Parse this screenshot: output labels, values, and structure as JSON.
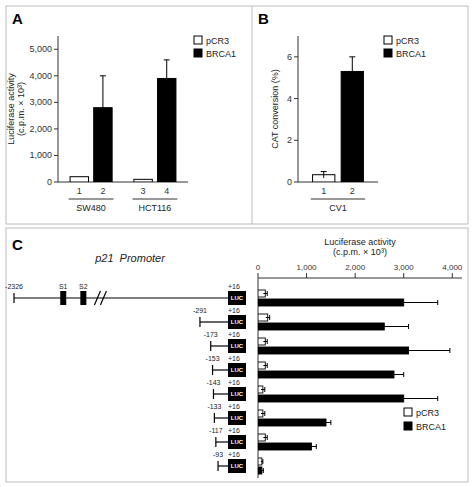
{
  "chart_data": [
    {
      "type": "bar",
      "title": "A",
      "categories": [
        "1",
        "2",
        "3",
        "4"
      ],
      "values": [
        200,
        2800,
        100,
        3900
      ],
      "errors": [
        0,
        1200,
        0,
        700
      ],
      "colors": [
        "white",
        "black",
        "white",
        "black"
      ],
      "group_labels": [
        "SW480",
        "HCT116"
      ],
      "legend_entries": [
        {
          "name": "pCR3",
          "color": "white"
        },
        {
          "name": "BRCA1",
          "color": "black"
        }
      ],
      "legend": "upper right",
      "ylabel": "Luciferase activity\n(c.p.m. × 10³)",
      "ylim": [
        0,
        5500
      ],
      "yticks": [
        0,
        {
          "value": 1000,
          "label": "1,000"
        },
        {
          "value": 2000,
          "label": "2,000"
        },
        {
          "value": 3000,
          "label": "3,000"
        },
        {
          "value": 4000,
          "label": "4,000"
        },
        {
          "value": 5000,
          "label": "5,000"
        }
      ]
    },
    {
      "type": "bar",
      "title": "B",
      "categories": [
        "1",
        "2"
      ],
      "values": [
        0.35,
        5.3
      ],
      "errors": [
        0.15,
        0.7
      ],
      "colors": [
        "white",
        "black"
      ],
      "group_labels": [
        "CV1"
      ],
      "legend_entries": [
        {
          "name": "pCR3",
          "color": "white"
        },
        {
          "name": "BRCA1",
          "color": "black"
        }
      ],
      "legend": "upper right",
      "ylabel": "CAT conversion (%)",
      "ylim": [
        0,
        7
      ],
      "yticks": [
        0,
        2,
        4,
        6
      ]
    },
    {
      "type": "bar",
      "orientation": "horizontal",
      "title": "C",
      "subtitle": "p21  Promoter",
      "xlabel": "Luciferase activity\n(c.p.m. × 10³)",
      "categories": [
        -2326,
        -291,
        -173,
        -153,
        -143,
        -133,
        -117,
        -93
      ],
      "series": [
        {
          "name": "pCR3",
          "color": "white",
          "values": [
            150,
            200,
            150,
            150,
            100,
            100,
            150,
            80
          ],
          "errors": [
            40,
            40,
            40,
            40,
            40,
            40,
            40,
            20
          ]
        },
        {
          "name": "BRCA1",
          "color": "black",
          "values": [
            3000,
            2600,
            3100,
            2800,
            3000,
            1400,
            1100,
            80
          ],
          "errors": [
            700,
            500,
            850,
            200,
            700,
            100,
            100,
            30
          ]
        }
      ],
      "legend": "lower right",
      "xlim": [
        0,
        4200
      ],
      "xticks": [
        0,
        {
          "value": 1000,
          "label": "1,000"
        },
        {
          "value": 2000,
          "label": "2,000"
        },
        {
          "value": 3000,
          "label": "3,000"
        },
        {
          "value": 4000,
          "label": "4,000"
        }
      ],
      "diagram": {
        "end": {
          "value": 16,
          "label": "+16"
        },
        "reporter": "LUC",
        "sites": [
          {
            "label": "S1",
            "position": -1820
          },
          {
            "label": "S2",
            "position": -1600
          }
        ],
        "break_at": -1380,
        "sites_on": [
          true,
          false,
          false,
          false,
          false,
          false,
          false,
          false
        ]
      }
    }
  ]
}
